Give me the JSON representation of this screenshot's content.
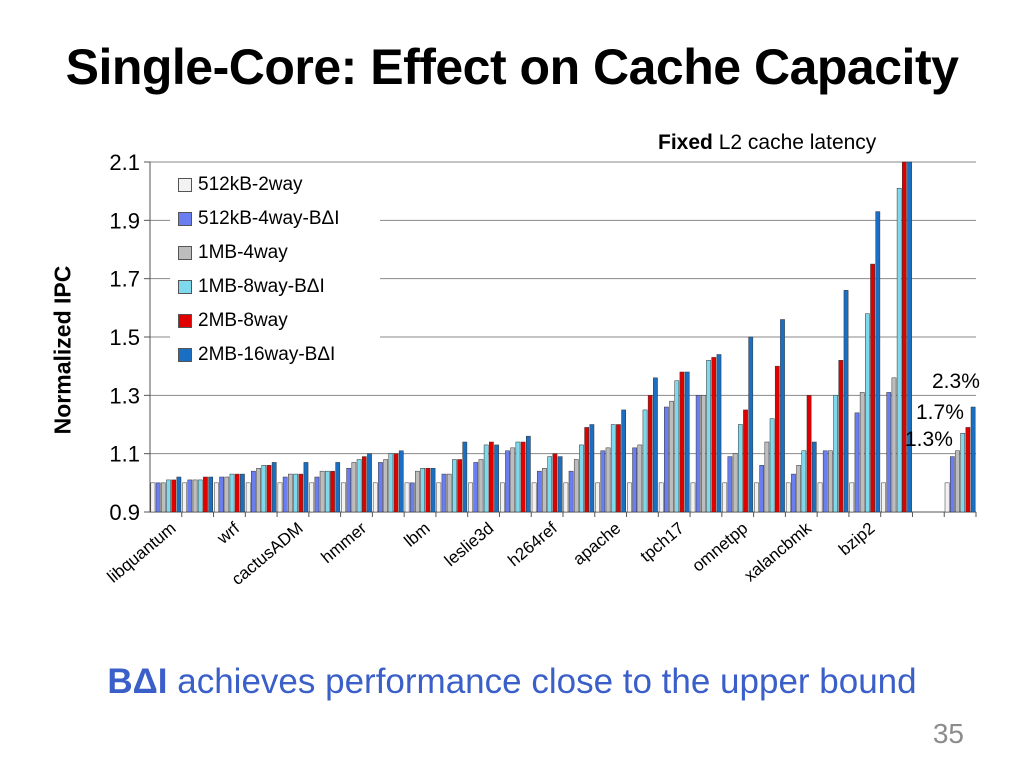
{
  "slide": {
    "title": "Single-Core: Effect on Cache Capacity",
    "note_bold": "Fixed",
    "note_rest": " L2 cache latency",
    "ylabel": "Normalized IPC",
    "bottom_bold": "BΔI",
    "bottom_rest": " achieves performance close to the upper bound",
    "slide_number": "35",
    "annotations": [
      "2.3%",
      "1.7%",
      "1.3%"
    ]
  },
  "colors": {
    "series": [
      "#f2f2f2",
      "#6b7ef0",
      "#bdbdbd",
      "#7ed9ec",
      "#e00000",
      "#1a6fc2"
    ],
    "accent_text": "#3b5fc9"
  },
  "chart_data": {
    "type": "bar",
    "ylim": [
      0.9,
      2.1
    ],
    "yticks": [
      0.9,
      1.1,
      1.3,
      1.5,
      1.7,
      1.9,
      2.1
    ],
    "grid": true,
    "legend": "top-left",
    "categories": [
      "libquantum",
      "",
      "wrf",
      "",
      "cactusADM",
      "",
      "hmmer",
      "",
      "lbm",
      "",
      "leslie3d",
      "",
      "h264ref",
      "",
      "apache",
      "",
      "tpch17",
      "",
      "omnetpp",
      "",
      "xalancbmk",
      "",
      "bzip2",
      "",
      "",
      ""
    ],
    "series": [
      {
        "name": "512kB-2way",
        "values": [
          1.0,
          1.0,
          1.0,
          1.0,
          1.0,
          1.0,
          1.0,
          1.0,
          1.0,
          1.0,
          1.0,
          1.0,
          1.0,
          1.0,
          1.0,
          1.0,
          1.0,
          1.0,
          1.0,
          1.0,
          1.0,
          1.0,
          1.0,
          1.0,
          null,
          1.0
        ]
      },
      {
        "name": "512kB-4way-BΔI",
        "values": [
          1.0,
          1.01,
          1.02,
          1.04,
          1.02,
          1.02,
          1.05,
          1.07,
          1.0,
          1.03,
          1.07,
          1.11,
          1.04,
          1.04,
          1.11,
          1.12,
          1.26,
          1.3,
          1.09,
          1.06,
          1.03,
          1.11,
          1.24,
          1.31,
          null,
          1.09
        ]
      },
      {
        "name": "1MB-4way",
        "values": [
          1.0,
          1.01,
          1.02,
          1.05,
          1.03,
          1.04,
          1.07,
          1.08,
          1.04,
          1.03,
          1.08,
          1.12,
          1.05,
          1.08,
          1.12,
          1.13,
          1.28,
          1.3,
          1.1,
          1.14,
          1.06,
          1.11,
          1.31,
          1.36,
          null,
          1.11
        ]
      },
      {
        "name": "1MB-8way-BΔI",
        "values": [
          1.01,
          1.01,
          1.03,
          1.06,
          1.03,
          1.04,
          1.08,
          1.1,
          1.05,
          1.08,
          1.13,
          1.14,
          1.09,
          1.13,
          1.2,
          1.25,
          1.35,
          1.42,
          1.2,
          1.22,
          1.11,
          1.3,
          1.58,
          2.01,
          null,
          1.17
        ]
      },
      {
        "name": "2MB-8way",
        "values": [
          1.01,
          1.02,
          1.03,
          1.06,
          1.03,
          1.04,
          1.09,
          1.1,
          1.05,
          1.08,
          1.14,
          1.14,
          1.1,
          1.19,
          1.2,
          1.3,
          1.38,
          1.43,
          1.25,
          1.4,
          1.3,
          1.42,
          1.75,
          2.1,
          null,
          1.19
        ]
      },
      {
        "name": "2MB-16way-BΔI",
        "values": [
          1.02,
          1.02,
          1.03,
          1.07,
          1.07,
          1.07,
          1.1,
          1.11,
          1.05,
          1.14,
          1.13,
          1.16,
          1.09,
          1.2,
          1.25,
          1.36,
          1.38,
          1.44,
          1.5,
          1.56,
          1.14,
          1.66,
          1.93,
          2.1,
          null,
          1.26
        ]
      }
    ]
  }
}
